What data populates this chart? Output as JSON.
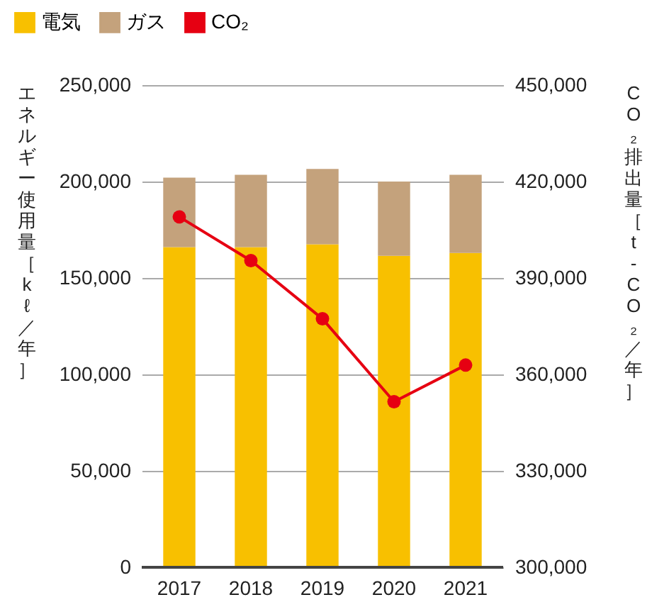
{
  "chart_data": {
    "type": "bar",
    "stacked": true,
    "categories": [
      "2017",
      "2018",
      "2019",
      "2020",
      "2021"
    ],
    "series": [
      {
        "name": "電気",
        "color": "#f8c000",
        "values": [
          166000,
          166000,
          167500,
          161500,
          163000
        ]
      },
      {
        "name": "ガス",
        "color": "#c4a27c",
        "values": [
          36000,
          37500,
          39000,
          38500,
          40500
        ]
      },
      {
        "name": "CO₂",
        "type": "line",
        "axis": "y2",
        "color": "#e60012",
        "marker": "circle",
        "values": [
          409000,
          395400,
          377300,
          351500,
          362900
        ]
      }
    ],
    "ylabel": "エネルギー使用量［kℓ／年］",
    "y2label": "CO₂排出量［t-CO₂／年］",
    "ylim": [
      0,
      250000
    ],
    "yticks": [
      0,
      {
        "value": 50000,
        "label": "50,000"
      },
      {
        "value": 100000,
        "label": "100,000"
      },
      {
        "value": 150000,
        "label": "150,000"
      },
      {
        "value": 200000,
        "label": "200,000"
      },
      {
        "value": 250000,
        "label": "250,000"
      }
    ],
    "y2lim": [
      300000,
      450000
    ],
    "y2ticks": [
      {
        "value": 300000,
        "label": "300,000"
      },
      {
        "value": 330000,
        "label": "330,000"
      },
      {
        "value": 360000,
        "label": "360,000"
      },
      {
        "value": 390000,
        "label": "390,000"
      },
      {
        "value": 420000,
        "label": "420,000"
      },
      {
        "value": 450000,
        "label": "450,000"
      }
    ],
    "grid": "y",
    "legend": "top left"
  }
}
